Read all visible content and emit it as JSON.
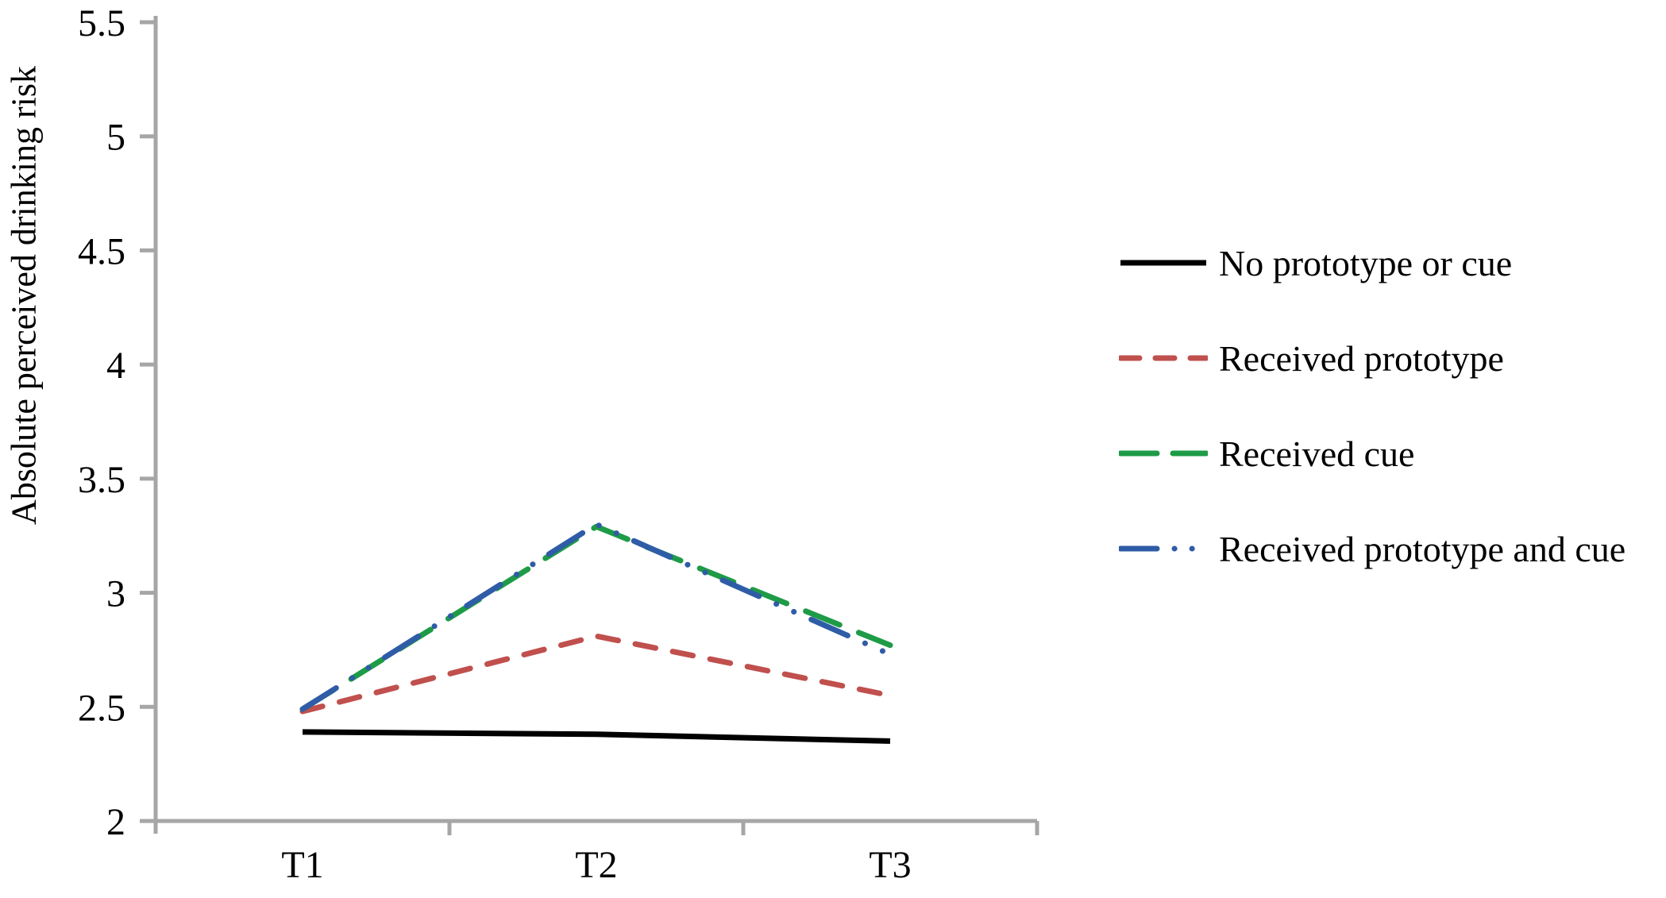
{
  "figure": {
    "background": "#ffffff",
    "axis_color": "#a6a6a6"
  },
  "chart_data": {
    "type": "line",
    "title": "",
    "xlabel": "",
    "ylabel": "Absolute perceived drinking risk",
    "categories": [
      "T1",
      "T2",
      "T3"
    ],
    "series": [
      {
        "name": "No prototype or cue",
        "values": [
          2.39,
          2.38,
          2.35
        ],
        "color": "#000000",
        "dash": "solid"
      },
      {
        "name": "Received prototype",
        "values": [
          2.48,
          2.81,
          2.55
        ],
        "color": "#c0504d",
        "dash": "short-dash"
      },
      {
        "name": "Received cue",
        "values": [
          2.49,
          3.29,
          2.77
        ],
        "color": "#1e9b46",
        "dash": "long-dash"
      },
      {
        "name": "Received prototype and cue",
        "values": [
          2.49,
          3.3,
          2.73
        ],
        "color": "#2f5ca6",
        "dash": "dash-dot-dot"
      }
    ],
    "ylim": [
      2.0,
      5.5
    ],
    "ytick_step": 0.5,
    "ytick_labels": [
      "2",
      "2.5",
      "3",
      "3.5",
      "4",
      "4.5",
      "5",
      "5.5"
    ],
    "grid": false,
    "legend_position": "right"
  }
}
